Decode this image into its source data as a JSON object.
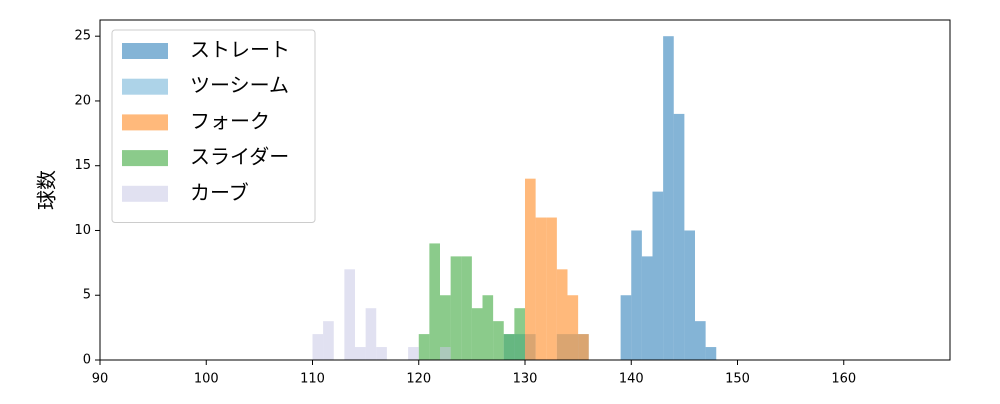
{
  "chart_data": {
    "type": "histogram",
    "y_label": "球数",
    "xlim": [
      90,
      170
    ],
    "xticks": [
      90,
      100,
      110,
      120,
      130,
      140,
      150,
      160
    ],
    "ylim": [
      0,
      26.25
    ],
    "yticks": [
      0,
      5,
      10,
      15,
      20,
      25
    ],
    "legend": "upper left",
    "opacity": 0.55,
    "series": [
      {
        "name": "ストレート",
        "color": "#1f77b4",
        "bins": [
          139,
          140,
          141,
          142,
          143,
          144,
          145,
          146,
          147,
          148
        ],
        "values": [
          5,
          10,
          8,
          13,
          25,
          19,
          10,
          3,
          1
        ]
      },
      {
        "name": "ツーシーム",
        "color": "#6aaed6",
        "bins": [
          128,
          131,
          133,
          136
        ],
        "values": [
          2,
          0,
          2
        ]
      },
      {
        "name": "フォーク",
        "color": "#ff7f0e",
        "bins": [
          130,
          131,
          132,
          133,
          134,
          135,
          136
        ],
        "values": [
          14,
          11,
          11,
          7,
          5,
          2
        ]
      },
      {
        "name": "スライダー",
        "color": "#2ca02c",
        "bins": [
          120,
          121,
          122,
          123,
          124,
          125,
          126,
          127,
          128,
          129,
          130
        ],
        "values": [
          2,
          9,
          5,
          8,
          8,
          4,
          5,
          3,
          2,
          4
        ]
      },
      {
        "name": "カーブ",
        "color": "#c8c8e6",
        "bins": [
          110,
          111,
          112,
          113,
          114,
          115,
          116,
          117,
          118,
          119,
          120,
          121,
          122,
          123
        ],
        "values": [
          2,
          3,
          0,
          7,
          1,
          4,
          1,
          0,
          0,
          1,
          0,
          0,
          1
        ]
      }
    ]
  }
}
